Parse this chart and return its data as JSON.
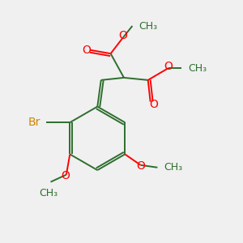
{
  "bg_color": "#f0f0f0",
  "bond_color": "#2d6e2d",
  "oxygen_color": "#ff0000",
  "bromine_color": "#cc8800",
  "line_width": 1.4,
  "font_size": 10,
  "fig_size": [
    3.0,
    3.0
  ],
  "dpi": 100,
  "xlim": [
    0,
    10
  ],
  "ylim": [
    0,
    10
  ]
}
